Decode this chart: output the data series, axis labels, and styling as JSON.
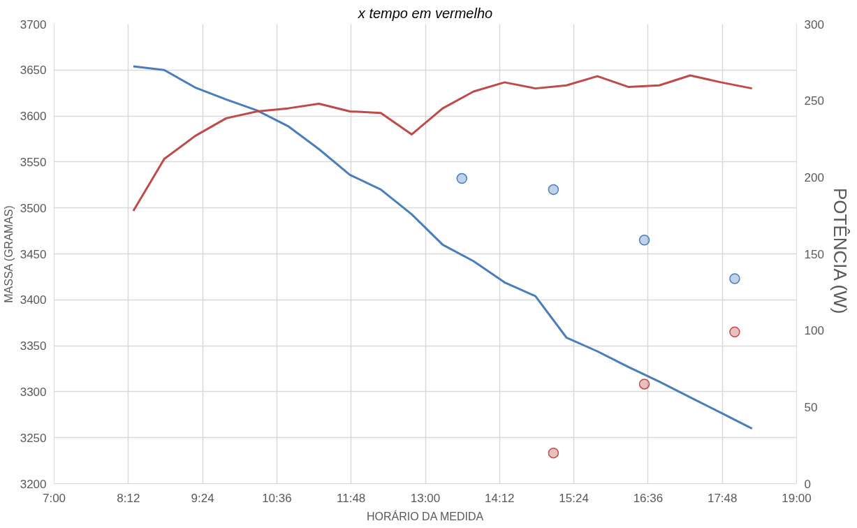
{
  "chart_data": {
    "type": "line",
    "title": "x tempo em vermelho",
    "xlabel": "HORÁRIO DA MEDIDA",
    "ylabel": "MASSA (GRAMAS)",
    "y2label": "POTÊNCIA  (W)",
    "x": [
      8.28,
      8.78,
      9.28,
      9.78,
      10.28,
      10.78,
      11.28,
      11.78,
      12.28,
      12.78,
      13.28,
      13.78,
      14.28,
      14.78,
      15.28,
      15.78,
      16.28,
      16.78,
      17.28,
      17.78,
      18.28
    ],
    "series": [
      {
        "color": "#4a7ebb",
        "values": [
          3654,
          3650,
          3631,
          3618,
          3606,
          3589,
          3564,
          3536,
          3520,
          3493,
          3460,
          3442,
          3419,
          3404,
          3359,
          3344,
          3327,
          3311,
          3294,
          3277,
          3260
        ]
      },
      {
        "color": "#be4b48",
        "axis": "y2",
        "values": [
          178,
          212,
          227,
          238.5,
          243,
          245,
          248,
          243,
          242,
          228,
          245,
          256,
          262,
          258,
          260,
          266,
          259,
          260,
          266.5,
          262,
          258
        ]
      },
      {
        "type": "scatter",
        "marker": "circle",
        "color": "#4a7ebb",
        "x": [
          13.59,
          15.07,
          16.54,
          18.0
        ],
        "values": [
          3532,
          3520,
          3465,
          3423
        ]
      },
      {
        "type": "scatter",
        "marker": "circle",
        "color": "#be4b48",
        "axis": "y2",
        "x": [
          15.07,
          16.54,
          18.0
        ],
        "values": [
          20,
          65,
          99
        ]
      }
    ],
    "xlim": [
      7,
      19
    ],
    "xticks": [
      {
        "value": 7,
        "label": "7:00"
      },
      {
        "value": 8.2,
        "label": "8:12"
      },
      {
        "value": 9.4,
        "label": "9:24"
      },
      {
        "value": 10.6,
        "label": "10:36"
      },
      {
        "value": 11.8,
        "label": "11:48"
      },
      {
        "value": 13,
        "label": "13:00"
      },
      {
        "value": 14.2,
        "label": "14:12"
      },
      {
        "value": 15.4,
        "label": "15:24"
      },
      {
        "value": 16.6,
        "label": "16:36"
      },
      {
        "value": 17.8,
        "label": "17:48"
      },
      {
        "value": 19,
        "label": "19:00"
      }
    ],
    "ylim": [
      3200,
      3700
    ],
    "yticks": [
      3200,
      3250,
      3300,
      3350,
      3400,
      3450,
      3500,
      3550,
      3600,
      3650,
      3700
    ],
    "y2lim": [
      0,
      300
    ],
    "y2ticks": [
      0,
      50,
      100,
      150,
      200,
      250,
      300
    ],
    "grid": true,
    "line_style": "solid"
  }
}
